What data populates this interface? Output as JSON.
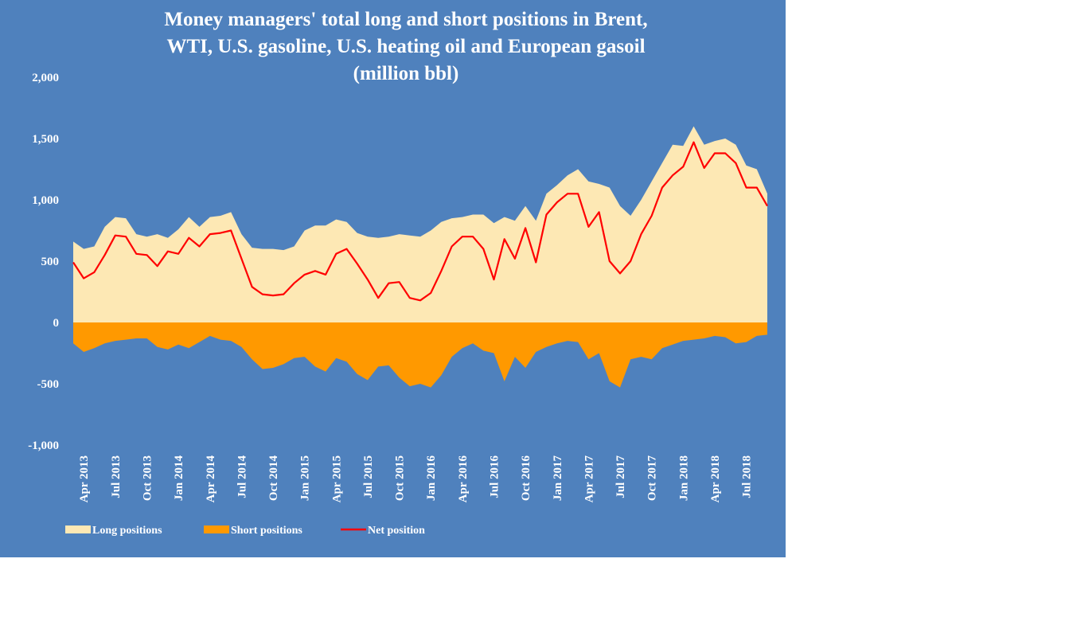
{
  "chart_data": {
    "type": "area",
    "title_lines": [
      "Money managers' total long and short positions in Brent,",
      "WTI, U.S. gasoline, U.S. heating oil and European gasoil",
      "(million bbl)"
    ],
    "y_ticks": [
      "2,000",
      "1,500",
      "1,000",
      "500",
      "0",
      "-500",
      "-1,000"
    ],
    "y_tick_values": [
      2000,
      1500,
      1000,
      500,
      0,
      -500,
      -1000
    ],
    "ylim": [
      -1000,
      2000
    ],
    "x_ticks": [
      "Apr 2013",
      "Jul 2013",
      "Oct 2013",
      "Jan 2014",
      "Apr 2014",
      "Jul 2014",
      "Oct 2014",
      "Jan 2015",
      "Apr 2015",
      "Jul 2015",
      "Oct 2015",
      "Jan 2016",
      "Apr 2016",
      "Jul 2016",
      "Oct 2016",
      "Jan 2017",
      "Apr 2017",
      "Jul 2017",
      "Oct 2017",
      "Jan 2018",
      "Apr 2018",
      "Jul 2018"
    ],
    "x_start": "2013-03",
    "x_step_months": 1,
    "x": [
      "2013-03",
      "2013-04",
      "2013-05",
      "2013-06",
      "2013-07",
      "2013-08",
      "2013-09",
      "2013-10",
      "2013-11",
      "2013-12",
      "2014-01",
      "2014-02",
      "2014-03",
      "2014-04",
      "2014-05",
      "2014-06",
      "2014-07",
      "2014-08",
      "2014-09",
      "2014-10",
      "2014-11",
      "2014-12",
      "2015-01",
      "2015-02",
      "2015-03",
      "2015-04",
      "2015-05",
      "2015-06",
      "2015-07",
      "2015-08",
      "2015-09",
      "2015-10",
      "2015-11",
      "2015-12",
      "2016-01",
      "2016-02",
      "2016-03",
      "2016-04",
      "2016-05",
      "2016-06",
      "2016-07",
      "2016-08",
      "2016-09",
      "2016-10",
      "2016-11",
      "2016-12",
      "2017-01",
      "2017-02",
      "2017-03",
      "2017-04",
      "2017-05",
      "2017-06",
      "2017-07",
      "2017-08",
      "2017-09",
      "2017-10",
      "2017-11",
      "2017-12",
      "2018-01",
      "2018-02",
      "2018-03",
      "2018-04",
      "2018-05",
      "2018-06",
      "2018-07",
      "2018-08",
      "2018-09"
    ],
    "series": [
      {
        "name": "Long positions",
        "color": "#fde8b4",
        "values": [
          660,
          600,
          620,
          780,
          860,
          850,
          720,
          700,
          720,
          690,
          760,
          860,
          780,
          860,
          870,
          900,
          720,
          610,
          600,
          600,
          590,
          620,
          750,
          790,
          790,
          840,
          820,
          730,
          700,
          690,
          700,
          720,
          710,
          700,
          750,
          820,
          850,
          860,
          880,
          880,
          810,
          860,
          830,
          950,
          830,
          1050,
          1120,
          1200,
          1250,
          1150,
          1130,
          1100,
          950,
          870,
          1000,
          1150,
          1300,
          1450,
          1440,
          1600,
          1450,
          1480,
          1500,
          1450,
          1280,
          1250,
          1050
        ]
      },
      {
        "name": "Short positions",
        "color": "#ff9900",
        "values": [
          -170,
          -240,
          -210,
          -170,
          -150,
          -140,
          -130,
          -130,
          -200,
          -220,
          -180,
          -210,
          -160,
          -110,
          -140,
          -150,
          -200,
          -300,
          -380,
          -370,
          -340,
          -290,
          -280,
          -360,
          -400,
          -290,
          -320,
          -420,
          -470,
          -360,
          -350,
          -450,
          -520,
          -500,
          -530,
          -430,
          -280,
          -210,
          -170,
          -230,
          -250,
          -480,
          -280,
          -370,
          -240,
          -200,
          -170,
          -150,
          -160,
          -300,
          -250,
          -480,
          -530,
          -300,
          -280,
          -300,
          -210,
          -180,
          -150,
          -140,
          -130,
          -110,
          -120,
          -170,
          -160,
          -110,
          -100
        ]
      },
      {
        "name": "Net position",
        "color": "#ff0000",
        "values": [
          490,
          360,
          410,
          550,
          710,
          700,
          560,
          550,
          460,
          580,
          560,
          690,
          620,
          720,
          730,
          750,
          520,
          290,
          230,
          220,
          230,
          320,
          390,
          420,
          390,
          560,
          600,
          480,
          350,
          200,
          320,
          330,
          200,
          180,
          240,
          420,
          620,
          700,
          700,
          600,
          350,
          680,
          520,
          770,
          490,
          880,
          980,
          1050,
          1050,
          780,
          900,
          500,
          400,
          500,
          720,
          870,
          1100,
          1200,
          1270,
          1470,
          1260,
          1380,
          1380,
          1300,
          1100,
          1100,
          950
        ]
      }
    ],
    "legend": [
      "Long positions",
      "Short positions",
      "Net position"
    ],
    "legend_position": "bottom-left",
    "grid": false,
    "background": "#4f81bd"
  }
}
